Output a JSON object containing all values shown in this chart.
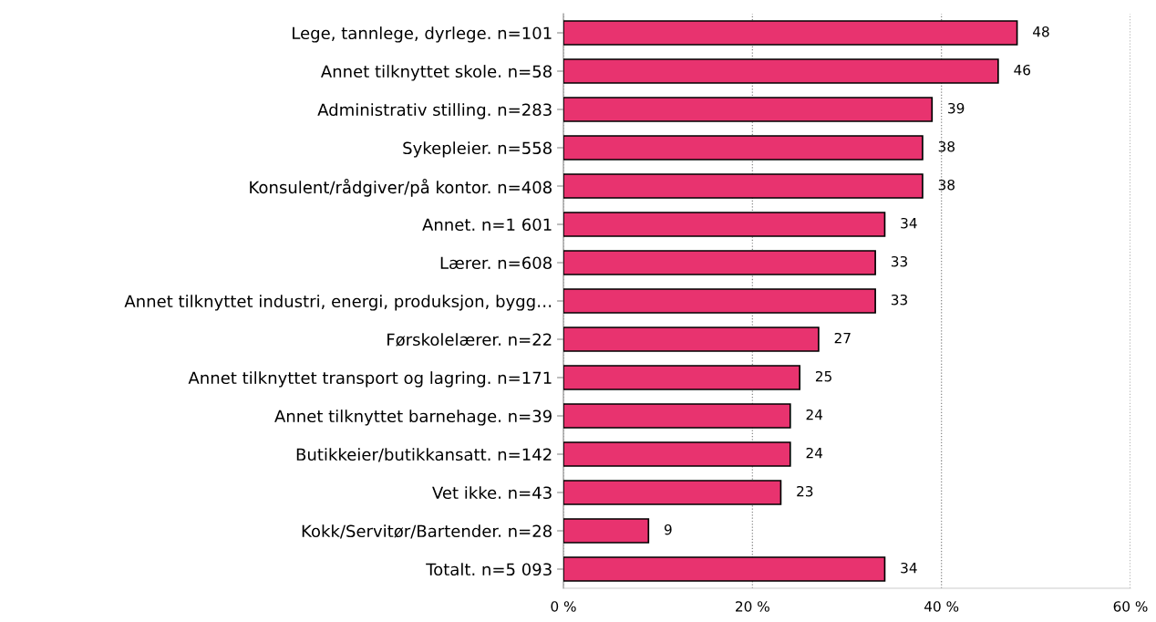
{
  "chart_data": {
    "type": "bar",
    "orientation": "horizontal",
    "categories": [
      "Lege, tannlege, dyrlege. n=101",
      "Annet tilknyttet skole. n=58",
      "Administrativ stilling. n=283",
      "Sykepleier. n=558",
      "Konsulent/rådgiver/på kontor. n=408",
      "Annet. n=1 601",
      "Lærer. n=608",
      "Annet tilknyttet industri, energi, produksjon, bygg…",
      "Førskolelærer. n=22",
      "Annet tilknyttet transport og lagring. n=171",
      "Annet tilknyttet barnehage. n=39",
      "Butikkeier/butikkansatt. n=142",
      "Vet ikke. n=43",
      "Kokk/Servitør/Bartender. n=28",
      "Totalt. n=5 093"
    ],
    "values": [
      48,
      46,
      39,
      38,
      38,
      34,
      33,
      33,
      27,
      25,
      24,
      24,
      23,
      9,
      34
    ],
    "color": "#e8336f",
    "xlim": [
      0,
      60
    ],
    "xticks": [
      {
        "value": 0,
        "label": "0 %"
      },
      {
        "value": 20,
        "label": "20 %"
      },
      {
        "value": 40,
        "label": "40 %"
      },
      {
        "value": 60,
        "label": "60 %"
      }
    ],
    "grid": "x",
    "data_labels": true
  }
}
